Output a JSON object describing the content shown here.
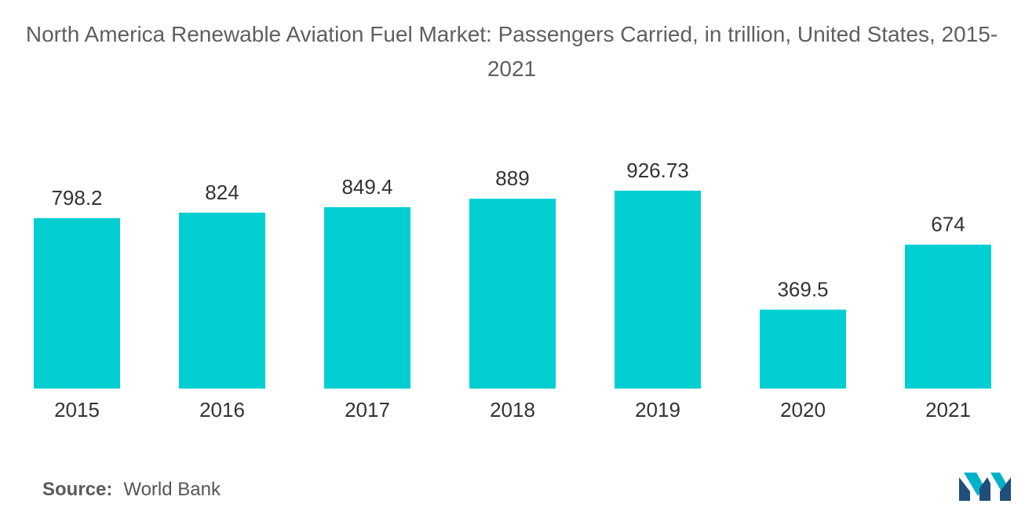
{
  "title": "North America Renewable Aviation Fuel Market: Passengers Carried, in trillion, United States, 2015-2021",
  "source": {
    "label": "Source:",
    "value": "World Bank"
  },
  "logo": {
    "icon": "mordor-intelligence-logo",
    "colors": [
      "#1f4e79",
      "#00b2c7"
    ]
  },
  "colors": {
    "bar": "#00ced1",
    "text": "#333333",
    "title": "#5f5f5f"
  },
  "chart_data": {
    "type": "bar",
    "title": "North America Renewable Aviation Fuel Market: Passengers Carried, in trillion, United States, 2015-2021",
    "xlabel": "",
    "ylabel": "",
    "categories": [
      "2015",
      "2016",
      "2017",
      "2018",
      "2019",
      "2020",
      "2021"
    ],
    "values": [
      798.2,
      824,
      849.4,
      889,
      926.73,
      369.5,
      674
    ],
    "value_labels": [
      "798.2",
      "824",
      "849.4",
      "889",
      "926.73",
      "369.5",
      "674"
    ],
    "ylim": [
      0,
      1000
    ],
    "grid": false,
    "legend": "none"
  }
}
